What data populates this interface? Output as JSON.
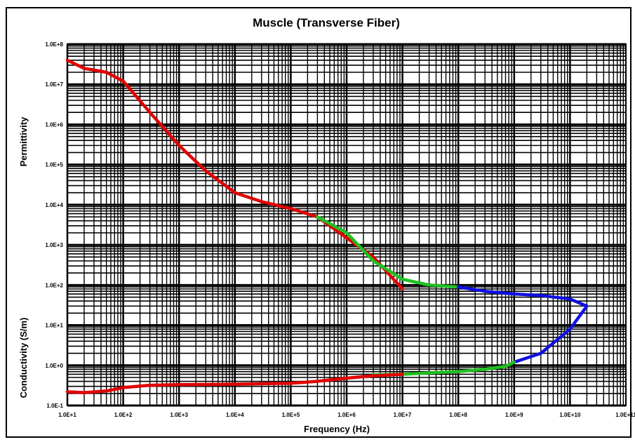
{
  "chart_data": {
    "type": "line",
    "title": "Muscle (Transverse Fiber)",
    "xlabel": "Frequency (Hz)",
    "ylabel_top": "Permittivity",
    "ylabel_bottom": "Conductivity (S/m)",
    "x_scale": "log",
    "y_scale": "log",
    "xlim": [
      10,
      100000000000
    ],
    "ylim": [
      0.1,
      100000000
    ],
    "grid": true,
    "x_tick_labels": [
      "1.0E+1",
      "1.0E+2",
      "1.0E+3",
      "1.0E+4",
      "1.0E+5",
      "1.0E+6",
      "1.0E+7",
      "1.0E+8",
      "1.0E+9",
      "1.0E+10",
      "1.0E+11"
    ],
    "y_tick_labels": [
      "1.0E-1",
      "1.0E+0",
      "1.0E+1",
      "1.0E+2",
      "1.0E+3",
      "1.0E+4",
      "1.0E+5",
      "1.0E+6",
      "1.0E+7",
      "1.0E+8"
    ],
    "series": [
      {
        "color": "#e00000",
        "x": [
          10,
          20,
          50,
          100,
          300,
          1000,
          3000,
          10000,
          30000,
          100000,
          300000,
          1000000,
          3000000,
          10000000
        ],
        "y": [
          40000000,
          25000000,
          20000000,
          12000000,
          2000000,
          300000,
          70000,
          20000,
          12000,
          8000,
          5000,
          1500,
          500,
          80
        ]
      },
      {
        "color": "#20c020",
        "x": [
          300000,
          1000000,
          3000000,
          10000000,
          30000000,
          100000000
        ],
        "y": [
          5000,
          2000,
          400,
          140,
          100,
          90
        ]
      },
      {
        "color": "#1010e0",
        "x": [
          100000000,
          300000000,
          1000000000,
          3000000000,
          10000000000,
          20000000000,
          10000000000,
          3000000000,
          1000000000
        ],
        "y": [
          90,
          70,
          60,
          55,
          45,
          30,
          8,
          2,
          1.2
        ]
      },
      {
        "color": "#20c020",
        "x": [
          1000000000,
          700000000,
          300000000,
          100000000,
          30000000,
          10000000,
          3000000
        ],
        "y": [
          1.2,
          0.95,
          0.8,
          0.7,
          0.65,
          0.6,
          0.58
        ]
      },
      {
        "color": "#e00000",
        "x": [
          10,
          20,
          50,
          100,
          300,
          1000,
          3000,
          10000,
          30000,
          100000,
          300000,
          1000000,
          3000000,
          10000000
        ],
        "y": [
          0.22,
          0.21,
          0.23,
          0.28,
          0.32,
          0.33,
          0.335,
          0.34,
          0.35,
          0.36,
          0.4,
          0.48,
          0.55,
          0.6
        ]
      }
    ]
  }
}
